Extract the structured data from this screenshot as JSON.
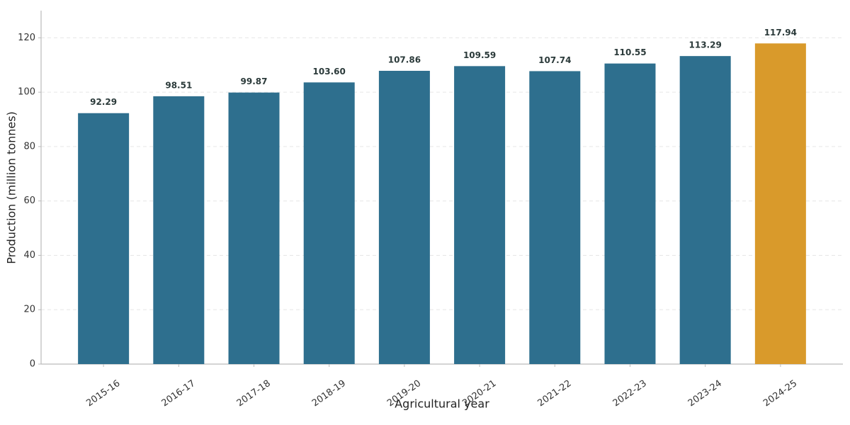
{
  "chart_data": {
    "type": "bar",
    "x_label": "Agricultural year",
    "y_label": "Production (million tonnes)",
    "categories": [
      "2015-16",
      "2016-17",
      "2017-18",
      "2018-19",
      "2019-20",
      "2020-21",
      "2021-22",
      "2022-23",
      "2023-24",
      "2024-25"
    ],
    "values": [
      92.29,
      98.51,
      99.87,
      103.6,
      107.86,
      109.59,
      107.74,
      110.55,
      113.29,
      117.94
    ],
    "value_labels": [
      "92.29",
      "98.51",
      "99.87",
      "103.60",
      "107.86",
      "109.59",
      "107.74",
      "110.55",
      "113.29",
      "117.94"
    ],
    "colors": [
      "#2e6f8e",
      "#2e6f8e",
      "#2e6f8e",
      "#2e6f8e",
      "#2e6f8e",
      "#2e6f8e",
      "#2e6f8e",
      "#2e6f8e",
      "#2e6f8e",
      "#d99a2b"
    ],
    "ylim": [
      0,
      130
    ],
    "yticks": [
      0,
      20,
      40,
      60,
      80,
      100,
      120
    ],
    "grid": true
  }
}
